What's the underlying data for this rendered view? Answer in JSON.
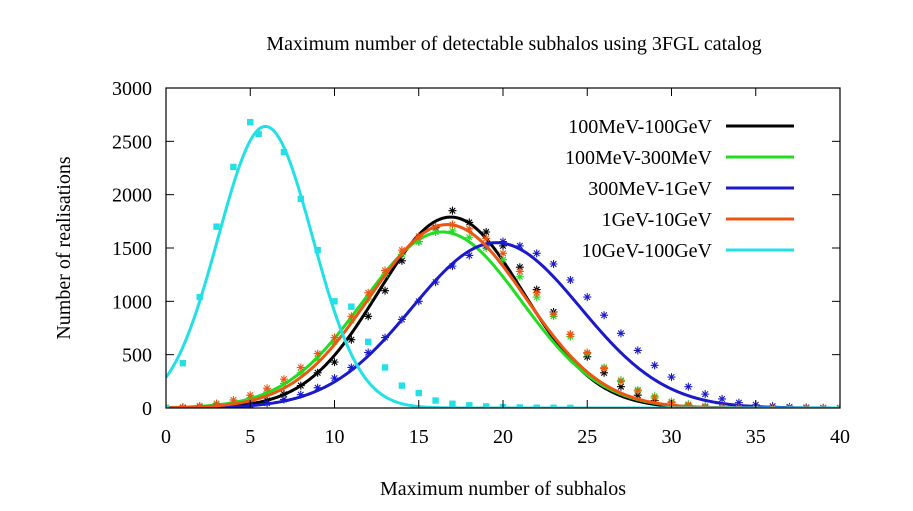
{
  "chart_data": {
    "type": "line",
    "title": "Maximum number of detectable subhalos using 3FGL catalog",
    "xlabel": "Maximum number of subhalos",
    "ylabel": "Number of realisations",
    "xlim": [
      0,
      40
    ],
    "ylim": [
      0,
      3000
    ],
    "xticks": [
      0,
      5,
      10,
      15,
      20,
      25,
      30,
      35,
      40
    ],
    "yticks": [
      0,
      500,
      1000,
      1500,
      2000,
      2500,
      3000
    ],
    "grid": false,
    "legend_position": "top-right",
    "series": [
      {
        "name": "100MeV-100GeV",
        "color": "#000000",
        "marker": "star",
        "fit": {
          "mu": 16.9,
          "sigma": 4.3,
          "amp": 1790
        },
        "points": [
          [
            0,
            0
          ],
          [
            1,
            0
          ],
          [
            2,
            2
          ],
          [
            3,
            6
          ],
          [
            4,
            15
          ],
          [
            5,
            32
          ],
          [
            6,
            70
          ],
          [
            7,
            130
          ],
          [
            8,
            210
          ],
          [
            9,
            330
          ],
          [
            10,
            430
          ],
          [
            11,
            640
          ],
          [
            12,
            860
          ],
          [
            13,
            1100
          ],
          [
            14,
            1380
          ],
          [
            15,
            1560
          ],
          [
            16,
            1690
          ],
          [
            17,
            1850
          ],
          [
            18,
            1740
          ],
          [
            19,
            1650
          ],
          [
            20,
            1520
          ],
          [
            21,
            1320
          ],
          [
            22,
            1110
          ],
          [
            23,
            900
          ],
          [
            24,
            690
          ],
          [
            25,
            480
          ],
          [
            26,
            330
          ],
          [
            27,
            200
          ],
          [
            28,
            120
          ],
          [
            29,
            70
          ],
          [
            30,
            35
          ],
          [
            31,
            18
          ],
          [
            32,
            8
          ],
          [
            33,
            3
          ],
          [
            34,
            1
          ],
          [
            35,
            0
          ],
          [
            36,
            0
          ],
          [
            37,
            0
          ],
          [
            38,
            0
          ],
          [
            39,
            0
          ],
          [
            40,
            0
          ]
        ]
      },
      {
        "name": "100MeV-300MeV",
        "color": "#22dd22",
        "marker": "star",
        "fit": {
          "mu": 16.4,
          "sigma": 4.7,
          "amp": 1650
        },
        "points": [
          [
            0,
            0
          ],
          [
            1,
            5
          ],
          [
            2,
            12
          ],
          [
            3,
            28
          ],
          [
            4,
            55
          ],
          [
            5,
            95
          ],
          [
            6,
            150
          ],
          [
            7,
            230
          ],
          [
            8,
            330
          ],
          [
            9,
            460
          ],
          [
            10,
            620
          ],
          [
            11,
            820
          ],
          [
            12,
            1020
          ],
          [
            13,
            1250
          ],
          [
            14,
            1440
          ],
          [
            15,
            1560
          ],
          [
            16,
            1650
          ],
          [
            17,
            1660
          ],
          [
            18,
            1600
          ],
          [
            19,
            1500
          ],
          [
            20,
            1390
          ],
          [
            21,
            1230
          ],
          [
            22,
            1040
          ],
          [
            23,
            860
          ],
          [
            24,
            670
          ],
          [
            25,
            510
          ],
          [
            26,
            380
          ],
          [
            27,
            260
          ],
          [
            28,
            170
          ],
          [
            29,
            110
          ],
          [
            30,
            60
          ],
          [
            31,
            35
          ],
          [
            32,
            18
          ],
          [
            33,
            8
          ],
          [
            34,
            3
          ],
          [
            35,
            1
          ],
          [
            36,
            0
          ],
          [
            37,
            0
          ],
          [
            38,
            0
          ],
          [
            39,
            0
          ],
          [
            40,
            0
          ]
        ]
      },
      {
        "name": "300MeV-1GeV",
        "color": "#1a1acc",
        "marker": "star",
        "fit": {
          "mu": 19.6,
          "sigma": 5.0,
          "amp": 1550
        },
        "points": [
          [
            0,
            0
          ],
          [
            1,
            0
          ],
          [
            2,
            2
          ],
          [
            3,
            6
          ],
          [
            4,
            15
          ],
          [
            5,
            25
          ],
          [
            6,
            45
          ],
          [
            7,
            80
          ],
          [
            8,
            125
          ],
          [
            9,
            190
          ],
          [
            10,
            280
          ],
          [
            11,
            380
          ],
          [
            12,
            520
          ],
          [
            13,
            660
          ],
          [
            14,
            830
          ],
          [
            15,
            1000
          ],
          [
            16,
            1180
          ],
          [
            17,
            1330
          ],
          [
            18,
            1430
          ],
          [
            19,
            1520
          ],
          [
            20,
            1560
          ],
          [
            21,
            1520
          ],
          [
            22,
            1450
          ],
          [
            23,
            1350
          ],
          [
            24,
            1200
          ],
          [
            25,
            1040
          ],
          [
            26,
            870
          ],
          [
            27,
            700
          ],
          [
            28,
            540
          ],
          [
            29,
            400
          ],
          [
            30,
            290
          ],
          [
            31,
            200
          ],
          [
            32,
            130
          ],
          [
            33,
            85
          ],
          [
            34,
            50
          ],
          [
            35,
            30
          ],
          [
            36,
            17
          ],
          [
            37,
            10
          ],
          [
            38,
            5
          ],
          [
            39,
            2
          ],
          [
            40,
            1
          ]
        ]
      },
      {
        "name": "1GeV-10GeV",
        "color": "#ee5511",
        "marker": "star",
        "fit": {
          "mu": 16.7,
          "sigma": 4.6,
          "amp": 1720
        },
        "points": [
          [
            0,
            3
          ],
          [
            1,
            8
          ],
          [
            2,
            20
          ],
          [
            3,
            42
          ],
          [
            4,
            75
          ],
          [
            5,
            120
          ],
          [
            6,
            185
          ],
          [
            7,
            270
          ],
          [
            8,
            380
          ],
          [
            9,
            510
          ],
          [
            10,
            660
          ],
          [
            11,
            860
          ],
          [
            12,
            1080
          ],
          [
            13,
            1290
          ],
          [
            14,
            1480
          ],
          [
            15,
            1610
          ],
          [
            16,
            1700
          ],
          [
            17,
            1720
          ],
          [
            18,
            1680
          ],
          [
            19,
            1590
          ],
          [
            20,
            1450
          ],
          [
            21,
            1280
          ],
          [
            22,
            1080
          ],
          [
            23,
            880
          ],
          [
            24,
            690
          ],
          [
            25,
            520
          ],
          [
            26,
            370
          ],
          [
            27,
            250
          ],
          [
            28,
            160
          ],
          [
            29,
            95
          ],
          [
            30,
            52
          ],
          [
            31,
            27
          ],
          [
            32,
            12
          ],
          [
            33,
            5
          ],
          [
            34,
            2
          ],
          [
            35,
            1
          ],
          [
            36,
            0
          ],
          [
            37,
            0
          ],
          [
            38,
            0
          ],
          [
            39,
            0
          ],
          [
            40,
            0
          ]
        ]
      },
      {
        "name": "10GeV-100GeV",
        "color": "#22e0e6",
        "marker": "square",
        "fit": {
          "mu": 5.9,
          "sigma": 2.8,
          "amp": 2640
        },
        "points": [
          [
            0,
            0
          ],
          [
            1,
            420
          ],
          [
            2,
            1040
          ],
          [
            3,
            1700
          ],
          [
            4,
            2260
          ],
          [
            5,
            2680
          ],
          [
            5.5,
            2570
          ],
          [
            7,
            2400
          ],
          [
            8,
            1960
          ],
          [
            9,
            1480
          ],
          [
            10,
            1000
          ],
          [
            11,
            950
          ],
          [
            12,
            620
          ],
          [
            13,
            380
          ],
          [
            14,
            210
          ],
          [
            15,
            140
          ],
          [
            16,
            70
          ],
          [
            17,
            40
          ],
          [
            18,
            25
          ],
          [
            19,
            15
          ],
          [
            20,
            8
          ],
          [
            21,
            5
          ],
          [
            22,
            3
          ],
          [
            23,
            2
          ],
          [
            24,
            1
          ]
        ]
      }
    ]
  }
}
